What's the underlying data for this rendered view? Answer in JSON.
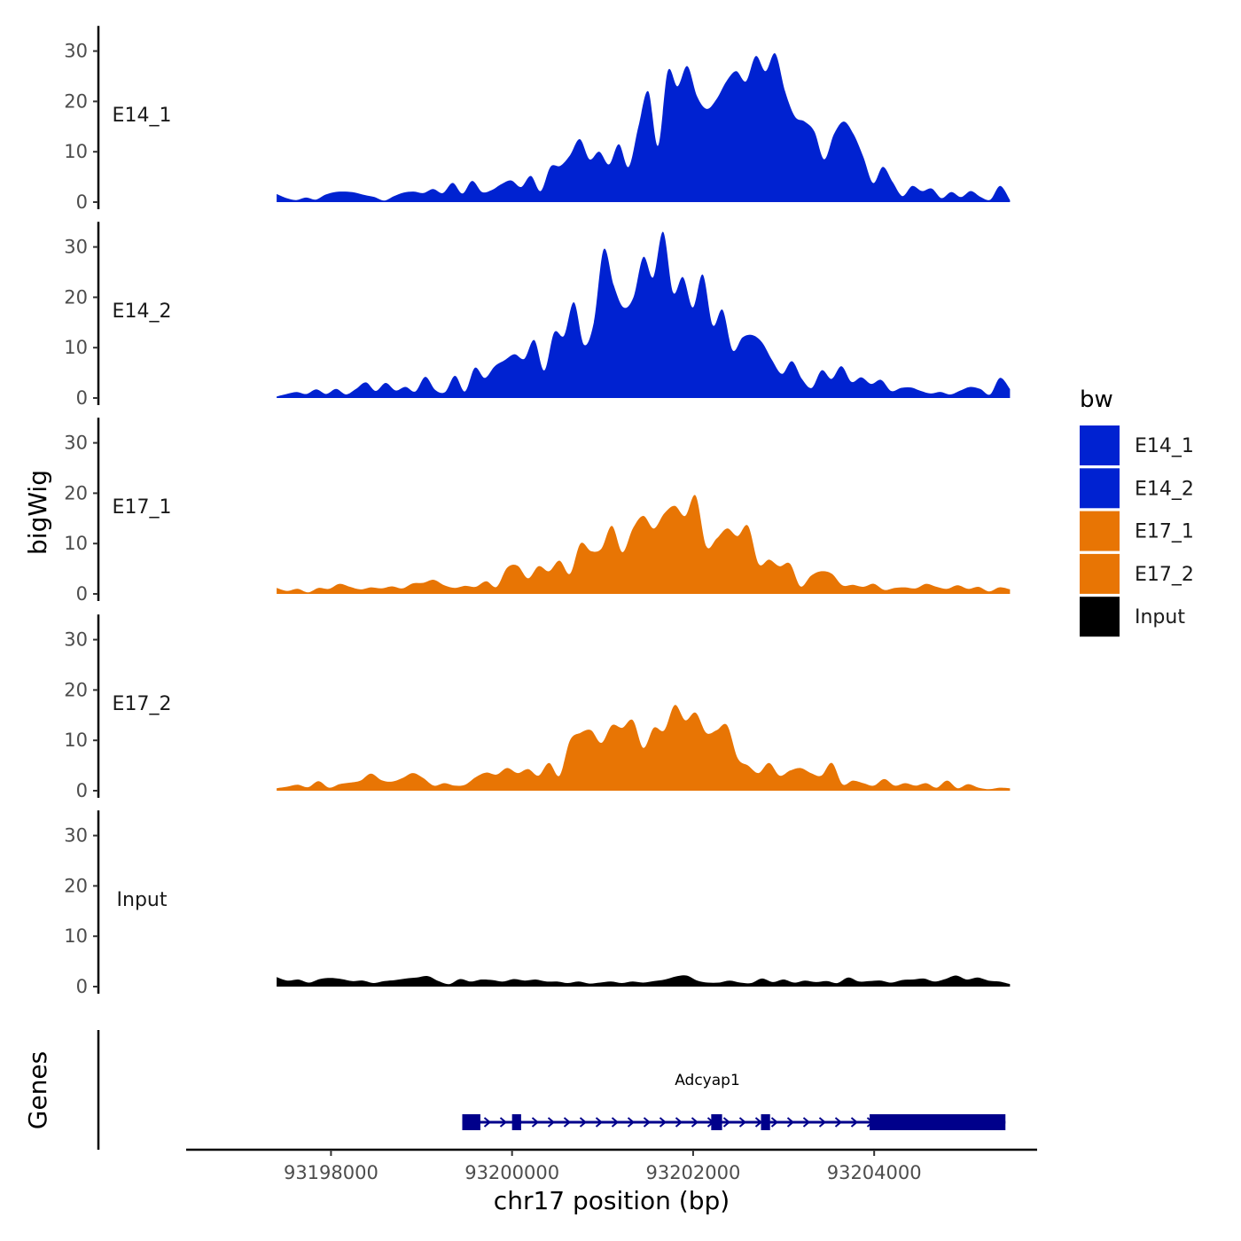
{
  "chart_data": {
    "type": "area",
    "title": "",
    "xlabel": "chr17 position (bp)",
    "ylabel": "bigWig",
    "genes_label": "Genes",
    "legend_title": "bw",
    "x_start": 93197400,
    "x_end": 93205500,
    "xlim": [
      93196400,
      93205800
    ],
    "ylim": [
      0,
      35
    ],
    "yticks": [
      0,
      10,
      20,
      30
    ],
    "xticks": [
      93198000,
      93200000,
      93202000,
      93204000
    ],
    "xtick_labels": [
      "93198000",
      "93200000",
      "93202000",
      "93204000"
    ],
    "colors": {
      "E14": "#0022d1",
      "E17": "#e87504",
      "Input": "#000000",
      "gene": "#00008b"
    },
    "legend": [
      {
        "label": "E14_1",
        "color": "#0022d1"
      },
      {
        "label": "E14_2",
        "color": "#0022d1"
      },
      {
        "label": "E17_1",
        "color": "#e87504"
      },
      {
        "label": "E17_2",
        "color": "#e87504"
      },
      {
        "label": "Input",
        "color": "#000000"
      }
    ],
    "series": [
      {
        "name": "E14_1",
        "color": "#0022d1",
        "values": [
          1.6,
          0.8,
          0.4,
          0.9,
          0.5,
          1.5,
          2.0,
          2.1,
          1.9,
          1.4,
          1.0,
          0.3,
          1.2,
          1.9,
          2.1,
          1.8,
          2.6,
          1.8,
          3.8,
          1.7,
          4.2,
          2.0,
          2.4,
          3.6,
          4.3,
          3.0,
          5.2,
          2.2,
          7.0,
          7.2,
          9.3,
          12.5,
          8.5,
          10.0,
          7.5,
          11.5,
          7.0,
          15.0,
          22.0,
          11.2,
          26.0,
          23.0,
          27.0,
          21.0,
          18.5,
          20.5,
          24.0,
          26.0,
          24.0,
          29.0,
          26.0,
          29.5,
          22.0,
          17.0,
          16.0,
          14.0,
          8.5,
          13.5,
          16.0,
          13.5,
          9.0,
          3.8,
          7.0,
          4.0,
          1.2,
          3.2,
          2.2,
          2.7,
          0.8,
          2.0,
          1.0,
          2.2,
          1.0,
          0.5,
          3.2,
          0.4
        ]
      },
      {
        "name": "E14_2",
        "color": "#0022d1",
        "values": [
          0.3,
          0.8,
          1.2,
          0.8,
          1.7,
          0.8,
          1.8,
          0.7,
          1.8,
          3.1,
          1.4,
          3.0,
          1.5,
          2.2,
          1.3,
          4.2,
          1.6,
          1.2,
          4.4,
          1.3,
          6.0,
          4.0,
          6.3,
          7.5,
          8.7,
          7.8,
          11.5,
          5.5,
          13.0,
          12.4,
          19.0,
          10.6,
          15.0,
          29.5,
          22.5,
          18.0,
          20.0,
          28.0,
          24.0,
          33.0,
          21.0,
          24.0,
          18.0,
          24.5,
          14.5,
          17.5,
          9.5,
          12.0,
          12.5,
          11.0,
          7.5,
          4.8,
          7.3,
          3.8,
          2.0,
          5.5,
          3.8,
          6.3,
          3.2,
          4.1,
          2.8,
          3.6,
          1.4,
          2.0,
          2.1,
          1.4,
          0.9,
          1.2,
          0.7,
          1.5,
          2.2,
          1.8,
          0.7,
          4.0,
          1.8
        ]
      },
      {
        "name": "E17_1",
        "color": "#e87504",
        "values": [
          1.2,
          0.6,
          1.0,
          0.3,
          1.2,
          1.0,
          2.0,
          1.4,
          0.9,
          1.3,
          1.1,
          1.5,
          1.1,
          2.1,
          2.2,
          2.8,
          1.7,
          1.2,
          1.6,
          1.4,
          2.5,
          1.4,
          5.2,
          5.6,
          3.1,
          5.5,
          4.5,
          6.6,
          4.0,
          10.0,
          8.5,
          9.0,
          13.5,
          8.3,
          13.0,
          15.5,
          13.0,
          16.0,
          17.5,
          15.5,
          19.5,
          9.5,
          11.0,
          13.0,
          11.5,
          13.5,
          6.0,
          6.8,
          5.5,
          6.0,
          1.5,
          3.6,
          4.5,
          4.0,
          1.7,
          1.8,
          1.4,
          2.0,
          0.8,
          1.2,
          1.3,
          1.1,
          2.0,
          1.4,
          1.0,
          1.7,
          1.0,
          1.4,
          0.5,
          1.3,
          0.9
        ]
      },
      {
        "name": "E17_2",
        "color": "#e87504",
        "values": [
          0.5,
          0.8,
          1.2,
          0.7,
          1.9,
          0.6,
          1.3,
          1.6,
          2.0,
          3.4,
          2.1,
          1.8,
          2.5,
          3.5,
          2.5,
          1.0,
          1.5,
          1.0,
          1.2,
          2.7,
          3.6,
          3.2,
          4.5,
          3.5,
          4.3,
          3.0,
          5.5,
          3.0,
          10.0,
          11.5,
          12.0,
          9.5,
          13.0,
          12.5,
          14.0,
          8.5,
          12.5,
          12.0,
          17.0,
          14.0,
          15.5,
          11.5,
          12.0,
          13.0,
          6.5,
          5.0,
          3.5,
          5.5,
          3.0,
          4.0,
          4.5,
          3.5,
          3.0,
          5.5,
          1.3,
          2.0,
          1.5,
          1.0,
          2.3,
          1.0,
          1.5,
          1.0,
          1.5,
          0.6,
          2.0,
          0.5,
          1.3,
          0.6,
          0.3,
          0.6,
          0.5
        ]
      },
      {
        "name": "Input",
        "color": "#000000",
        "values": [
          1.9,
          1.2,
          1.4,
          0.8,
          1.5,
          1.7,
          1.5,
          1.1,
          1.2,
          0.7,
          1.1,
          1.3,
          1.6,
          1.8,
          2.1,
          1.1,
          0.5,
          1.5,
          1.0,
          1.4,
          1.3,
          1.0,
          1.5,
          1.2,
          1.4,
          1.0,
          1.0,
          0.7,
          1.0,
          0.6,
          0.8,
          1.0,
          0.7,
          1.0,
          0.8,
          1.1,
          1.4,
          2.0,
          2.2,
          1.2,
          0.8,
          0.8,
          1.2,
          0.8,
          0.7,
          1.6,
          0.9,
          1.4,
          0.8,
          1.2,
          0.9,
          1.1,
          0.7,
          1.8,
          1.0,
          1.1,
          1.2,
          0.8,
          1.3,
          1.4,
          1.6,
          1.0,
          1.5,
          2.2,
          1.4,
          1.8,
          1.2,
          1.0,
          0.5
        ]
      }
    ],
    "gene": {
      "name": "Adcyap1",
      "start": 93199450,
      "end": 93205450,
      "strand": "+",
      "exons": [
        [
          93199450,
          93199650
        ],
        [
          93200000,
          93200100
        ],
        [
          93202200,
          93202320
        ],
        [
          93202750,
          93202850
        ],
        [
          93203950,
          93205450
        ]
      ]
    }
  }
}
